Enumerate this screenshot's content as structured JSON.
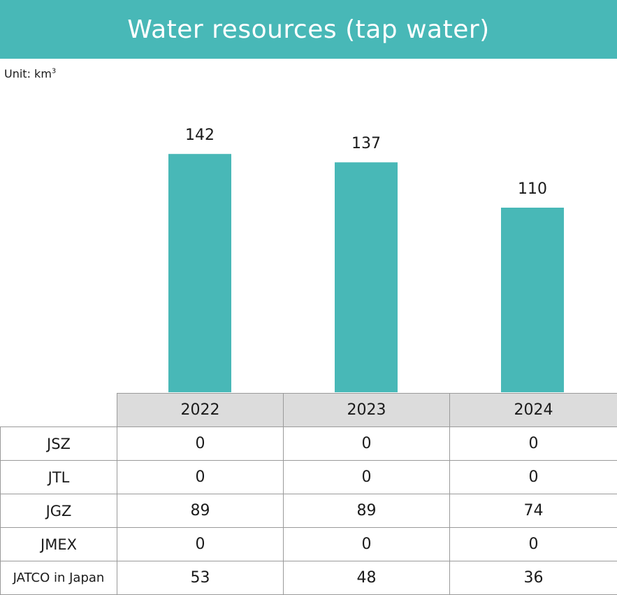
{
  "header": {
    "title": "Water resources (tap water)"
  },
  "unit": {
    "label": "Unit: km",
    "superscript": "3"
  },
  "colors": {
    "accent": "#48b8b7",
    "header_cell": "#dcdcdc",
    "grid_line": "#9a9a9a"
  },
  "chart_data": {
    "type": "bar",
    "categories": [
      "2022",
      "2023",
      "2024"
    ],
    "values": [
      142,
      137,
      110
    ],
    "title": "Water resources (tap water)",
    "ylabel": "",
    "unit": "km3",
    "grid": false,
    "data_labels": true
  },
  "table": {
    "columns": [
      "2022",
      "2023",
      "2024"
    ],
    "rows": [
      {
        "label": "JSZ",
        "values": [
          "0",
          "0",
          "0"
        ]
      },
      {
        "label": "JTL",
        "values": [
          "0",
          "0",
          "0"
        ]
      },
      {
        "label": "JGZ",
        "values": [
          "89",
          "89",
          "74"
        ]
      },
      {
        "label": "JMEX",
        "values": [
          "0",
          "0",
          "0"
        ]
      },
      {
        "label": "JATCO in Japan",
        "values": [
          "53",
          "48",
          "36"
        ]
      }
    ]
  }
}
